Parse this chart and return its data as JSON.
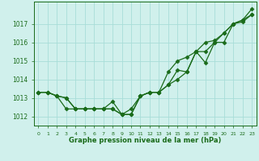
{
  "x": [
    0,
    1,
    2,
    3,
    4,
    5,
    6,
    7,
    8,
    9,
    10,
    11,
    12,
    13,
    14,
    15,
    16,
    17,
    18,
    19,
    20,
    21,
    22,
    23
  ],
  "line1": [
    1013.3,
    1013.3,
    1013.1,
    1013.0,
    1012.4,
    1012.4,
    1012.4,
    1012.4,
    1012.4,
    1012.1,
    1012.1,
    1013.1,
    1013.3,
    1013.3,
    1014.4,
    1015.0,
    1015.2,
    1015.5,
    1016.0,
    1016.1,
    1016.5,
    1017.0,
    1017.2,
    1017.8
  ],
  "line2": [
    1013.3,
    1013.3,
    1013.1,
    1013.0,
    1012.4,
    1012.4,
    1012.4,
    1012.4,
    1012.8,
    1012.1,
    1012.4,
    1013.1,
    1013.3,
    1013.3,
    1013.7,
    1014.0,
    1014.4,
    1015.5,
    1014.9,
    1016.0,
    1016.0,
    1017.0,
    1017.1,
    1017.5
  ],
  "line3": [
    1013.3,
    1013.3,
    1013.1,
    1012.4,
    1012.4,
    1012.4,
    1012.4,
    1012.4,
    1012.4,
    1012.1,
    1012.1,
    1013.1,
    1013.3,
    1013.3,
    1013.7,
    1014.5,
    1014.4,
    1015.5,
    1015.5,
    1016.0,
    1016.5,
    1017.0,
    1017.2,
    1017.5
  ],
  "bg_color": "#d0f0ec",
  "grid_color": "#a8ddd8",
  "line_color": "#1a6b1a",
  "xlabel": "Graphe pression niveau de la mer (hPa)",
  "ylim_min": 1011.5,
  "ylim_max": 1018.2,
  "xlim_min": -0.5,
  "xlim_max": 23.5,
  "yticks": [
    1012,
    1013,
    1014,
    1015,
    1016,
    1017
  ],
  "xticks": [
    0,
    1,
    2,
    3,
    4,
    5,
    6,
    7,
    8,
    9,
    10,
    11,
    12,
    13,
    14,
    15,
    16,
    17,
    18,
    19,
    20,
    21,
    22,
    23
  ]
}
